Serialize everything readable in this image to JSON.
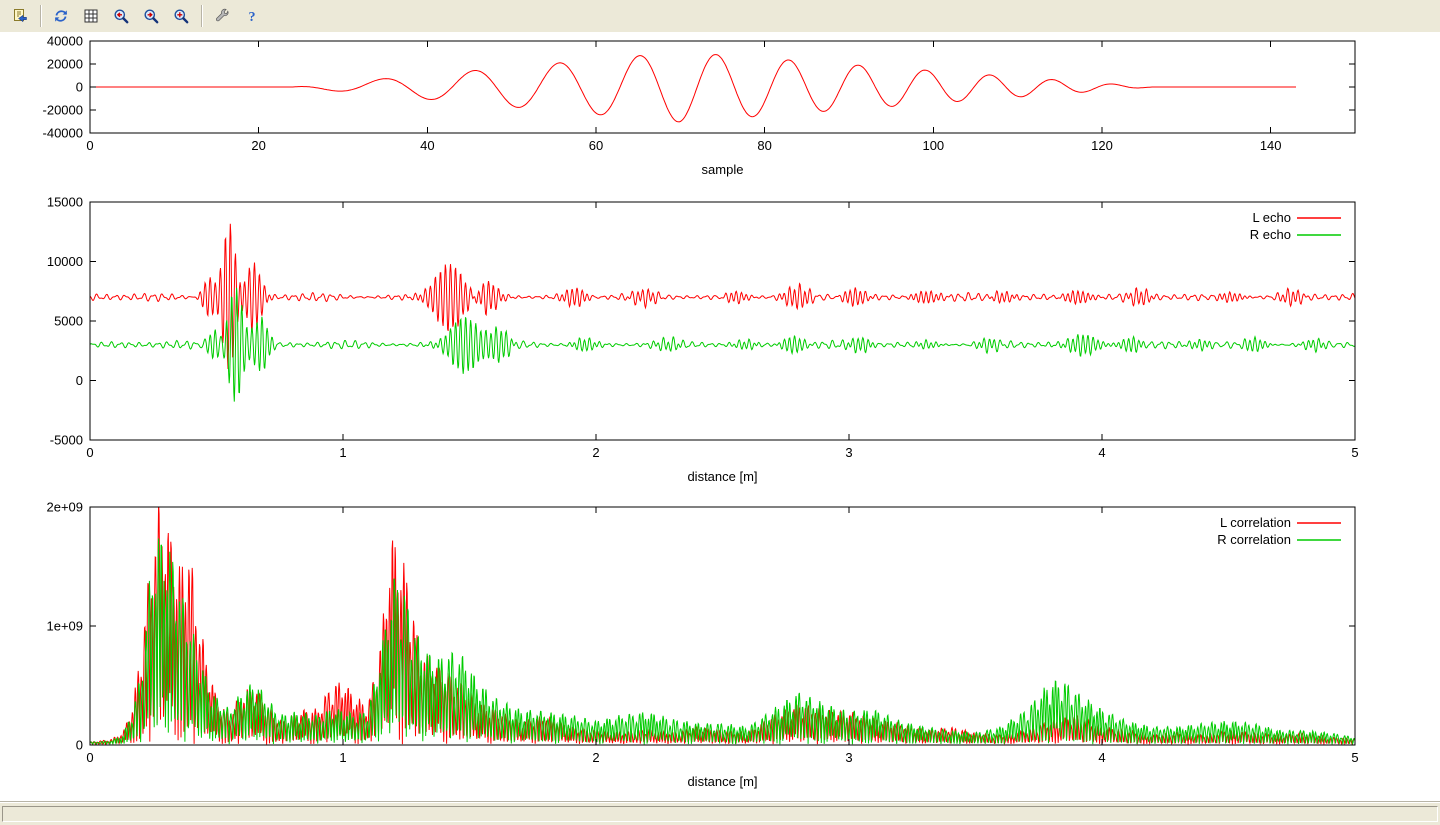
{
  "colors": {
    "toolbar_bg": "#ece9d8",
    "accent_blue": "#2a62c9",
    "series_red": "#ff0000",
    "series_green": "#00cc00"
  },
  "toolbar": {
    "items": [
      {
        "type": "button",
        "name": "export-button",
        "icon": "export-icon"
      },
      {
        "type": "separator"
      },
      {
        "type": "button",
        "name": "replot-button",
        "icon": "refresh-icon"
      },
      {
        "type": "button",
        "name": "grid-button",
        "icon": "grid-icon"
      },
      {
        "type": "button",
        "name": "zoom-previous-button",
        "icon": "zoom-previous-icon"
      },
      {
        "type": "button",
        "name": "zoom-next-button",
        "icon": "zoom-next-icon"
      },
      {
        "type": "button",
        "name": "autoscale-button",
        "icon": "zoom-reset-icon"
      },
      {
        "type": "separator"
      },
      {
        "type": "button",
        "name": "settings-button",
        "icon": "wrench-icon"
      },
      {
        "type": "button",
        "name": "help-button",
        "icon": "help-icon"
      }
    ]
  },
  "statusbar": {
    "message": ""
  },
  "chart_data": [
    {
      "id": "waveform",
      "type": "line",
      "title": "",
      "xlabel": "sample",
      "ylabel": "",
      "xlim": [
        0,
        150
      ],
      "ylim": [
        -40000,
        40000
      ],
      "grid": false,
      "xticks": [
        {
          "v": 0,
          "label": "0"
        },
        {
          "v": 20,
          "label": "20"
        },
        {
          "v": 40,
          "label": "40"
        },
        {
          "v": 60,
          "label": "60"
        },
        {
          "v": 80,
          "label": "80"
        },
        {
          "v": 100,
          "label": "100"
        },
        {
          "v": 120,
          "label": "120"
        },
        {
          "v": 140,
          "label": "140"
        }
      ],
      "yticks": [
        {
          "v": -40000,
          "label": "-40000"
        },
        {
          "v": -20000,
          "label": "-20000"
        },
        {
          "v": 0,
          "label": "0"
        },
        {
          "v": 20000,
          "label": "20000"
        },
        {
          "v": 40000,
          "label": "40000"
        }
      ],
      "legend": null,
      "series": [
        {
          "name": "",
          "color": "#ff0000",
          "gen": {
            "kind": "chirp",
            "x_start": 0,
            "x_end": 143,
            "quiet_until": 24,
            "rise_end": 70,
            "fall_end": 126,
            "peak": 30500,
            "f0": 0.088,
            "chirp_rate": 0.0006,
            "phase_origin": 32,
            "points": 880
          }
        }
      ]
    },
    {
      "id": "echo",
      "type": "line",
      "title": "",
      "xlabel": "distance [m]",
      "ylabel": "",
      "xlim": [
        0,
        5
      ],
      "ylim": [
        -5000,
        15000
      ],
      "grid": false,
      "xticks": [
        {
          "v": 0,
          "label": "0"
        },
        {
          "v": 1,
          "label": "1"
        },
        {
          "v": 2,
          "label": "2"
        },
        {
          "v": 3,
          "label": "3"
        },
        {
          "v": 4,
          "label": "4"
        },
        {
          "v": 5,
          "label": "5"
        }
      ],
      "yticks": [
        {
          "v": -5000,
          "label": "-5000"
        },
        {
          "v": 0,
          "label": "0"
        },
        {
          "v": 5000,
          "label": "5000"
        },
        {
          "v": 10000,
          "label": "10000"
        },
        {
          "v": 15000,
          "label": "15000"
        }
      ],
      "legend": {
        "position": "top-right"
      },
      "series": [
        {
          "name": "L echo",
          "color": "#ff0000",
          "gen": {
            "kind": "echo",
            "seed": 1.0,
            "baseline": 7000,
            "ripple_amp": 270,
            "ripple_freq": 27,
            "carrier_freq": 50,
            "packets": [
              [
                0.47,
                1600,
                0.03
              ],
              [
                0.55,
                6300,
                0.034
              ],
              [
                0.645,
                2900,
                0.04
              ],
              [
                1.42,
                2900,
                0.075
              ],
              [
                1.57,
                1500,
                0.05
              ],
              [
                1.92,
                750,
                0.05
              ],
              [
                2.2,
                500,
                0.06
              ],
              [
                2.55,
                450,
                0.05
              ],
              [
                2.8,
                800,
                0.06
              ],
              [
                3.02,
                700,
                0.05
              ],
              [
                3.3,
                500,
                0.06
              ],
              [
                3.6,
                450,
                0.05
              ],
              [
                3.9,
                550,
                0.06
              ],
              [
                4.15,
                520,
                0.05
              ],
              [
                4.5,
                400,
                0.06
              ],
              [
                4.75,
                480,
                0.05
              ]
            ]
          }
        },
        {
          "name": "R echo",
          "color": "#00cc00",
          "gen": {
            "kind": "echo",
            "seed": 2.0,
            "baseline": 3000,
            "ripple_amp": 260,
            "ripple_freq": 27,
            "carrier_freq": 50,
            "packets": [
              [
                0.49,
                1200,
                0.03
              ],
              [
                0.575,
                4900,
                0.038
              ],
              [
                0.675,
                2300,
                0.04
              ],
              [
                1.48,
                2400,
                0.075
              ],
              [
                1.62,
                1200,
                0.05
              ],
              [
                1.95,
                550,
                0.05
              ],
              [
                2.3,
                520,
                0.06
              ],
              [
                2.6,
                400,
                0.05
              ],
              [
                2.78,
                680,
                0.05
              ],
              [
                3.05,
                620,
                0.05
              ],
              [
                3.3,
                350,
                0.05
              ],
              [
                3.55,
                400,
                0.05
              ],
              [
                3.92,
                900,
                0.07
              ],
              [
                4.12,
                650,
                0.05
              ],
              [
                4.4,
                380,
                0.05
              ],
              [
                4.6,
                520,
                0.05
              ],
              [
                4.85,
                420,
                0.05
              ]
            ]
          }
        }
      ]
    },
    {
      "id": "correlation",
      "type": "line",
      "title": "",
      "xlabel": "distance [m]",
      "ylabel": "",
      "xlim": [
        0,
        5
      ],
      "ylim": [
        0,
        2000000000
      ],
      "grid": false,
      "xticks": [
        {
          "v": 0,
          "label": "0"
        },
        {
          "v": 1,
          "label": "1"
        },
        {
          "v": 2,
          "label": "2"
        },
        {
          "v": 3,
          "label": "3"
        },
        {
          "v": 4,
          "label": "4"
        },
        {
          "v": 5,
          "label": "5"
        }
      ],
      "yticks": [
        {
          "v": 0,
          "label": "0"
        },
        {
          "v": 1000000000,
          "label": "1e+09"
        },
        {
          "v": 2000000000,
          "label": "2e+09"
        }
      ],
      "legend": {
        "position": "top-right"
      },
      "series": [
        {
          "name": "L correlation",
          "color": "#ff0000",
          "gen": {
            "kind": "corr",
            "seed": 0.7,
            "carrier_freq": 40,
            "unit": 1000000000,
            "envelope": [
              [
                0.0,
                0.02
              ],
              [
                0.08,
                0.04
              ],
              [
                0.13,
                0.1
              ],
              [
                0.17,
                0.35
              ],
              [
                0.2,
                0.8
              ],
              [
                0.24,
                1.6
              ],
              [
                0.27,
                2.05
              ],
              [
                0.3,
                1.95
              ],
              [
                0.33,
                1.7
              ],
              [
                0.36,
                1.5
              ],
              [
                0.39,
                1.75
              ],
              [
                0.42,
                1.2
              ],
              [
                0.45,
                0.85
              ],
              [
                0.5,
                0.4
              ],
              [
                0.55,
                0.25
              ],
              [
                0.6,
                0.45
              ],
              [
                0.65,
                0.5
              ],
              [
                0.7,
                0.35
              ],
              [
                0.75,
                0.2
              ],
              [
                0.8,
                0.25
              ],
              [
                0.85,
                0.3
              ],
              [
                0.9,
                0.3
              ],
              [
                0.95,
                0.5
              ],
              [
                1.0,
                0.55
              ],
              [
                1.05,
                0.4
              ],
              [
                1.1,
                0.35
              ],
              [
                1.15,
                0.9
              ],
              [
                1.19,
                1.8
              ],
              [
                1.22,
                1.7
              ],
              [
                1.26,
                1.4
              ],
              [
                1.3,
                0.85
              ],
              [
                1.35,
                0.7
              ],
              [
                1.4,
                0.65
              ],
              [
                1.45,
                0.55
              ],
              [
                1.5,
                0.45
              ],
              [
                1.55,
                0.35
              ],
              [
                1.6,
                0.3
              ],
              [
                1.7,
                0.2
              ],
              [
                1.8,
                0.25
              ],
              [
                1.9,
                0.15
              ],
              [
                2.0,
                0.12
              ],
              [
                2.1,
                0.1
              ],
              [
                2.2,
                0.13
              ],
              [
                2.3,
                0.1
              ],
              [
                2.4,
                0.15
              ],
              [
                2.5,
                0.12
              ],
              [
                2.6,
                0.1
              ],
              [
                2.7,
                0.25
              ],
              [
                2.8,
                0.35
              ],
              [
                2.9,
                0.3
              ],
              [
                3.0,
                0.28
              ],
              [
                3.1,
                0.22
              ],
              [
                3.2,
                0.18
              ],
              [
                3.3,
                0.12
              ],
              [
                3.4,
                0.15
              ],
              [
                3.5,
                0.1
              ],
              [
                3.6,
                0.08
              ],
              [
                3.7,
                0.12
              ],
              [
                3.8,
                0.2
              ],
              [
                3.9,
                0.25
              ],
              [
                4.0,
                0.15
              ],
              [
                4.1,
                0.12
              ],
              [
                4.2,
                0.08
              ],
              [
                4.3,
                0.1
              ],
              [
                4.4,
                0.08
              ],
              [
                4.5,
                0.12
              ],
              [
                4.6,
                0.1
              ],
              [
                4.7,
                0.08
              ],
              [
                4.8,
                0.1
              ],
              [
                4.9,
                0.06
              ],
              [
                5.0,
                0.05
              ]
            ]
          }
        },
        {
          "name": "R correlation",
          "color": "#00cc00",
          "gen": {
            "kind": "corr",
            "seed": 2.3,
            "carrier_freq": 40,
            "unit": 1000000000,
            "envelope": [
              [
                0.0,
                0.02
              ],
              [
                0.08,
                0.03
              ],
              [
                0.13,
                0.08
              ],
              [
                0.17,
                0.3
              ],
              [
                0.2,
                0.6
              ],
              [
                0.24,
                1.5
              ],
              [
                0.27,
                1.8
              ],
              [
                0.3,
                1.75
              ],
              [
                0.33,
                1.6
              ],
              [
                0.36,
                1.3
              ],
              [
                0.4,
                1.0
              ],
              [
                0.44,
                0.7
              ],
              [
                0.48,
                0.45
              ],
              [
                0.55,
                0.3
              ],
              [
                0.6,
                0.45
              ],
              [
                0.65,
                0.55
              ],
              [
                0.7,
                0.4
              ],
              [
                0.75,
                0.25
              ],
              [
                0.8,
                0.28
              ],
              [
                0.9,
                0.25
              ],
              [
                0.95,
                0.3
              ],
              [
                1.0,
                0.3
              ],
              [
                1.05,
                0.25
              ],
              [
                1.1,
                0.3
              ],
              [
                1.15,
                0.8
              ],
              [
                1.2,
                1.45
              ],
              [
                1.24,
                1.35
              ],
              [
                1.28,
                1.0
              ],
              [
                1.33,
                0.8
              ],
              [
                1.38,
                0.75
              ],
              [
                1.43,
                0.8
              ],
              [
                1.48,
                0.75
              ],
              [
                1.53,
                0.55
              ],
              [
                1.6,
                0.4
              ],
              [
                1.65,
                0.35
              ],
              [
                1.7,
                0.3
              ],
              [
                1.8,
                0.28
              ],
              [
                1.9,
                0.25
              ],
              [
                2.0,
                0.2
              ],
              [
                2.1,
                0.25
              ],
              [
                2.2,
                0.28
              ],
              [
                2.3,
                0.22
              ],
              [
                2.4,
                0.18
              ],
              [
                2.5,
                0.18
              ],
              [
                2.6,
                0.15
              ],
              [
                2.7,
                0.3
              ],
              [
                2.8,
                0.45
              ],
              [
                2.9,
                0.35
              ],
              [
                3.0,
                0.28
              ],
              [
                3.1,
                0.3
              ],
              [
                3.2,
                0.2
              ],
              [
                3.3,
                0.15
              ],
              [
                3.4,
                0.12
              ],
              [
                3.5,
                0.1
              ],
              [
                3.6,
                0.15
              ],
              [
                3.7,
                0.3
              ],
              [
                3.8,
                0.55
              ],
              [
                3.85,
                0.55
              ],
              [
                3.9,
                0.45
              ],
              [
                4.0,
                0.3
              ],
              [
                4.1,
                0.2
              ],
              [
                4.2,
                0.15
              ],
              [
                4.3,
                0.15
              ],
              [
                4.4,
                0.18
              ],
              [
                4.5,
                0.2
              ],
              [
                4.6,
                0.18
              ],
              [
                4.7,
                0.12
              ],
              [
                4.8,
                0.12
              ],
              [
                4.9,
                0.1
              ],
              [
                5.0,
                0.06
              ]
            ]
          }
        }
      ]
    }
  ]
}
